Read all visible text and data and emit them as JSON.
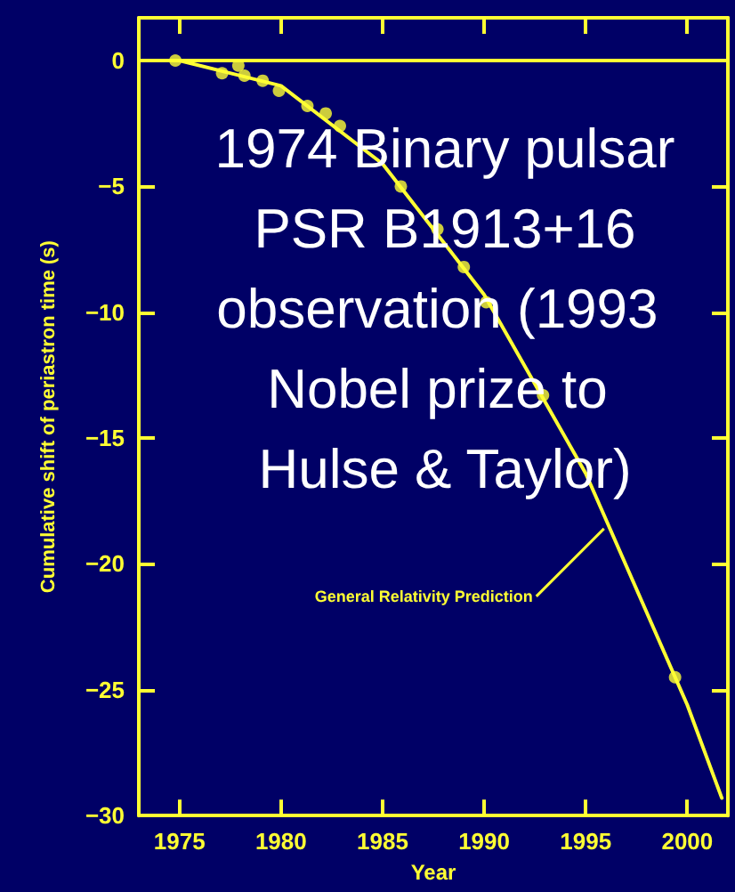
{
  "chart_data": {
    "type": "scatter",
    "title": "1974 Binary pulsar PSR B1913+16 observation (1993 Nobel prize to Hulse & Taylor)",
    "xlabel": "Year",
    "ylabel": "Cumulative shift of periastron time (s)",
    "annotations": [
      {
        "text": "General Relativity Prediction",
        "x": 1995.9,
        "y": -18.6
      }
    ],
    "series": [
      {
        "type": "line",
        "color": "#ffff33",
        "marker": "none",
        "x": [
          1975,
          1980,
          1985,
          1990,
          1995,
          2000,
          2001.7
        ],
        "values": [
          0,
          -1.0,
          -4.1,
          -9.3,
          -16.4,
          -25.6,
          -29.3
        ]
      },
      {
        "type": "scatter",
        "color": "#ffff33",
        "marker": "circle",
        "x": [
          1974.8,
          1977.1,
          1977.9,
          1978.2,
          1979.1,
          1979.9,
          1981.3,
          1982.2,
          1982.9,
          1985.9,
          1987.7,
          1989.0,
          1990.1,
          1992.9,
          1999.4
        ],
        "values": [
          0,
          -0.5,
          -0.2,
          -0.6,
          -0.8,
          -1.2,
          -1.8,
          -2.1,
          -2.6,
          -5.0,
          -6.7,
          -8.2,
          -9.6,
          -13.3,
          -24.5
        ]
      }
    ],
    "ref_lines": [
      {
        "axis": "y",
        "value": 0,
        "color": "#ffff33"
      }
    ],
    "xlim": [
      1973,
      2002
    ],
    "xticks": [
      1975,
      1980,
      1985,
      1990,
      1995,
      2000
    ],
    "ylim": [
      -30,
      1.7
    ],
    "yticks": [
      0,
      -5,
      -10,
      -15,
      -20,
      -25,
      -30
    ],
    "grid": false
  }
}
